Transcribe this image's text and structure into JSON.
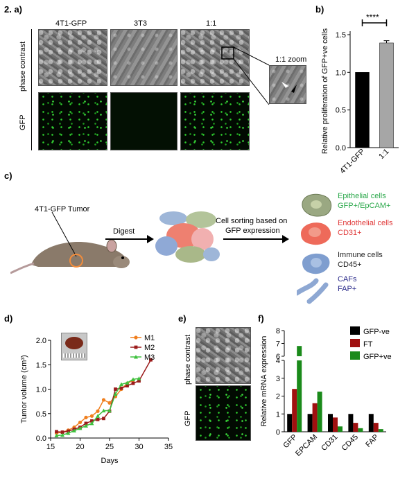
{
  "panel_a": {
    "label": "2. a)",
    "columns": [
      "4T1-GFP",
      "3T3",
      "1:1"
    ],
    "row_phase": "phase contrast",
    "row_gfp": "GFP",
    "zoom_label": "1:1 zoom"
  },
  "panel_b": {
    "label": "b)",
    "significance": "****"
  },
  "panel_c": {
    "label": "c)",
    "tumor": "4T1-GFP Tumor",
    "digest": "Digest",
    "sorting_line1": "Cell sorting based on",
    "sorting_line2": "GFP expression",
    "cells": [
      {
        "line1": "Epithelial cells",
        "line2": "GFP+/EpCAM+",
        "color": "#2aa84a"
      },
      {
        "line1": "Endothelial cells",
        "line2": "CD31+",
        "color": "#e03a3a"
      },
      {
        "line1": "Immune cells",
        "line2": "CD45+",
        "color": "#222222"
      },
      {
        "line1": "CAFs",
        "line2": "FAP+",
        "color": "#2a2a8a"
      }
    ]
  },
  "panel_d": {
    "label": "d)"
  },
  "panel_e": {
    "label": "e)",
    "row_phase": "phase contrast",
    "row_gfp": "GFP"
  },
  "panel_f": {
    "label": "f)"
  },
  "chart_data": [
    {
      "type": "bar",
      "panel": "b",
      "categories": [
        "4T1-GFP",
        "1:1"
      ],
      "values": [
        1.0,
        1.39
      ],
      "error": [
        0,
        0.03
      ],
      "colors": [
        "#000000",
        "#a6a6a6"
      ],
      "ylabel": "Relative proliferation of GFP+ve cells",
      "ylim": [
        0,
        1.5
      ],
      "yticks": [
        "0.0",
        "0.5",
        "1.0",
        "1.5"
      ]
    },
    {
      "type": "line",
      "panel": "d",
      "xlabel": "Days",
      "ylabel": "Tumor volume (cm³)",
      "xlim": [
        15,
        35
      ],
      "ylim": [
        0,
        2.0
      ],
      "xticks": [
        "15",
        "20",
        "25",
        "30",
        "35"
      ],
      "yticks": [
        "0.0",
        "0.5",
        "1.0",
        "1.5",
        "2.0"
      ],
      "series": [
        {
          "name": "M1",
          "color": "#f07f1e",
          "marker": "circle",
          "x": [
            16,
            17,
            18,
            19,
            20,
            21,
            22,
            23,
            24,
            25,
            26,
            27,
            28,
            29
          ],
          "y": [
            0.1,
            0.12,
            0.16,
            0.22,
            0.32,
            0.42,
            0.45,
            0.55,
            0.78,
            0.72,
            0.85,
            1.0,
            1.12,
            1.18
          ]
        },
        {
          "name": "M2",
          "color": "#9b1b1b",
          "marker": "square",
          "x": [
            16,
            17,
            18,
            19,
            20,
            21,
            22,
            23,
            24,
            25,
            26,
            27,
            28,
            29,
            30,
            32
          ],
          "y": [
            0.13,
            0.12,
            0.14,
            0.18,
            0.22,
            0.3,
            0.35,
            0.38,
            0.4,
            0.55,
            1.0,
            1.02,
            1.07,
            1.12,
            1.17,
            1.6
          ]
        },
        {
          "name": "M3",
          "color": "#3ec13e",
          "marker": "triangle",
          "x": [
            16,
            17,
            18,
            19,
            20,
            21,
            22,
            23,
            24,
            25,
            26,
            27,
            28,
            29,
            30
          ],
          "y": [
            0.05,
            0.06,
            0.1,
            0.15,
            0.2,
            0.25,
            0.3,
            0.45,
            0.56,
            0.56,
            0.9,
            1.1,
            1.13,
            1.2,
            1.22
          ]
        }
      ]
    },
    {
      "type": "bar",
      "panel": "f",
      "ylabel": "Relative mRNA expression",
      "categories": [
        "GFP",
        "EPCAM",
        "CD31",
        "CD45",
        "FAP"
      ],
      "yticks_lower": [
        "0",
        "1",
        "2",
        "3",
        "4"
      ],
      "yticks_upper": [
        "6",
        "7",
        "8"
      ],
      "series": [
        {
          "name": "GFP-ve",
          "color": "#000000",
          "values": [
            1.0,
            1.0,
            1.0,
            1.0,
            1.0
          ]
        },
        {
          "name": "FT",
          "color": "#a01010",
          "values": [
            2.4,
            1.6,
            0.8,
            0.5,
            0.5
          ]
        },
        {
          "name": "GFP+ve",
          "color": "#1a8a1a",
          "values": [
            6.8,
            2.25,
            0.3,
            0.2,
            0.15
          ]
        }
      ]
    }
  ]
}
